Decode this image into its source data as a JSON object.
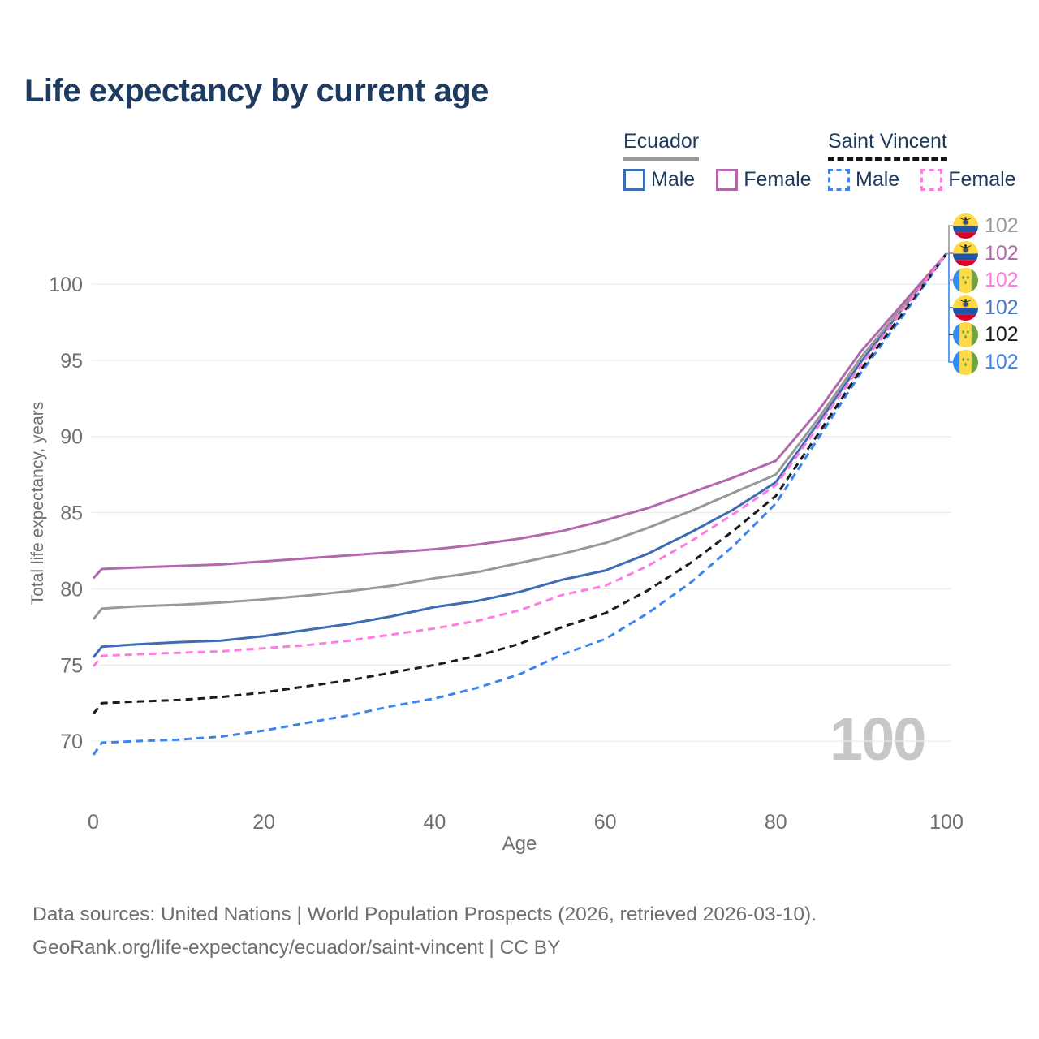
{
  "title": "Life expectancy by current age",
  "watermark": "100",
  "legend": {
    "groups": [
      {
        "name": "Ecuador",
        "line_style": "solid",
        "line_color": "#999999",
        "items": [
          {
            "label": "Male",
            "swatch_style": "solid",
            "color": "#3e6cb3"
          },
          {
            "label": "Female",
            "swatch_style": "solid",
            "color": "#b168ac"
          }
        ]
      },
      {
        "name": "Saint Vincent",
        "line_style": "dashed",
        "line_color": "#1b1b1b",
        "items": [
          {
            "label": "Male",
            "swatch_style": "dashed",
            "color": "#3c85f1"
          },
          {
            "label": "Female",
            "swatch_style": "dashed",
            "color": "#ff7be0"
          }
        ]
      }
    ]
  },
  "axes": {
    "y_label": "Total life expectancy, years",
    "x_label": "Age"
  },
  "endpoints": {
    "rows": [
      {
        "flag": "ecuador",
        "series": "Ecuador Total",
        "value": "102",
        "color": "#999999"
      },
      {
        "flag": "ecuador",
        "series": "Ecuador Female",
        "value": "102",
        "color": "#b168ac"
      },
      {
        "flag": "saint-vincent",
        "series": "Saint Vincent Female",
        "value": "102",
        "color": "#ff7be0"
      },
      {
        "flag": "ecuador",
        "series": "Ecuador Male",
        "value": "102",
        "color": "#4a77c4"
      },
      {
        "flag": "saint-vincent",
        "series": "Saint Vincent Total",
        "value": "102",
        "color": "#1b1b1b"
      },
      {
        "flag": "saint-vincent",
        "series": "Saint Vincent Male",
        "value": "102",
        "color": "#3c85f1"
      }
    ]
  },
  "footer": {
    "line1": "Data sources: United Nations | World Population Prospects (2026, retrieved 2026-03-10).",
    "line2": "GeoRank.org/life-expectancy/ecuador/saint-vincent | CC BY"
  },
  "chart_data": {
    "type": "line",
    "title": "Life expectancy by current age",
    "xlabel": "Age",
    "ylabel": "Total life expectancy, years",
    "xlim": [
      0,
      100
    ],
    "ylim": [
      67,
      103
    ],
    "xticks": [
      0,
      20,
      40,
      60,
      80,
      100
    ],
    "yticks": [
      70,
      75,
      80,
      85,
      90,
      95,
      100
    ],
    "grid": "horizontal",
    "grid_color": "#ececec",
    "tick_color": "#6f6f6f",
    "x": [
      0,
      1,
      5,
      10,
      15,
      20,
      25,
      30,
      35,
      40,
      45,
      50,
      55,
      60,
      65,
      70,
      75,
      80,
      85,
      90,
      95,
      100
    ],
    "series": [
      {
        "name": "Ecuador Male",
        "country": "Ecuador",
        "sex": "male",
        "color": "#3e6cb3",
        "dash": "solid",
        "values": [
          75.5,
          76.2,
          76.35,
          76.5,
          76.6,
          76.9,
          77.3,
          77.7,
          78.2,
          78.8,
          79.2,
          79.8,
          80.6,
          81.2,
          82.3,
          83.7,
          85.2,
          87.0,
          90.9,
          94.9,
          98.5,
          102
        ]
      },
      {
        "name": "Ecuador Total",
        "country": "Ecuador",
        "sex": "total",
        "color": "#999999",
        "dash": "solid",
        "values": [
          78.0,
          78.7,
          78.85,
          78.95,
          79.1,
          79.3,
          79.55,
          79.85,
          80.2,
          80.7,
          81.1,
          81.7,
          82.3,
          83.0,
          84.0,
          85.1,
          86.3,
          87.5,
          91.2,
          95.2,
          98.6,
          102
        ]
      },
      {
        "name": "Ecuador Female",
        "country": "Ecuador",
        "sex": "female",
        "color": "#b168ac",
        "dash": "solid",
        "values": [
          80.7,
          81.3,
          81.4,
          81.5,
          81.6,
          81.8,
          82.0,
          82.2,
          82.4,
          82.6,
          82.9,
          83.3,
          83.8,
          84.5,
          85.3,
          86.3,
          87.3,
          88.4,
          91.7,
          95.6,
          98.8,
          102
        ]
      },
      {
        "name": "Saint Vincent Male",
        "country": "Saint Vincent",
        "sex": "male",
        "color": "#3c85f1",
        "dash": "dashed",
        "values": [
          69.1,
          69.9,
          70.0,
          70.1,
          70.3,
          70.7,
          71.2,
          71.7,
          72.3,
          72.8,
          73.5,
          74.4,
          75.7,
          76.7,
          78.4,
          80.4,
          82.8,
          85.6,
          89.9,
          94.2,
          98.0,
          102
        ]
      },
      {
        "name": "Saint Vincent Total",
        "country": "Saint Vincent",
        "sex": "total",
        "color": "#1b1b1b",
        "dash": "dashed",
        "values": [
          71.8,
          72.5,
          72.6,
          72.7,
          72.9,
          73.2,
          73.6,
          74.0,
          74.5,
          75.0,
          75.6,
          76.4,
          77.5,
          78.4,
          79.9,
          81.7,
          83.8,
          86.1,
          90.2,
          94.4,
          98.2,
          102
        ]
      },
      {
        "name": "Saint Vincent Female",
        "country": "Saint Vincent",
        "sex": "female",
        "color": "#ff7be0",
        "dash": "dashed",
        "values": [
          74.9,
          75.6,
          75.7,
          75.8,
          75.9,
          76.1,
          76.3,
          76.6,
          77.0,
          77.4,
          77.9,
          78.6,
          79.6,
          80.2,
          81.5,
          83.1,
          84.9,
          86.8,
          90.7,
          94.7,
          98.4,
          102
        ]
      }
    ],
    "legend_position": "top-right"
  }
}
